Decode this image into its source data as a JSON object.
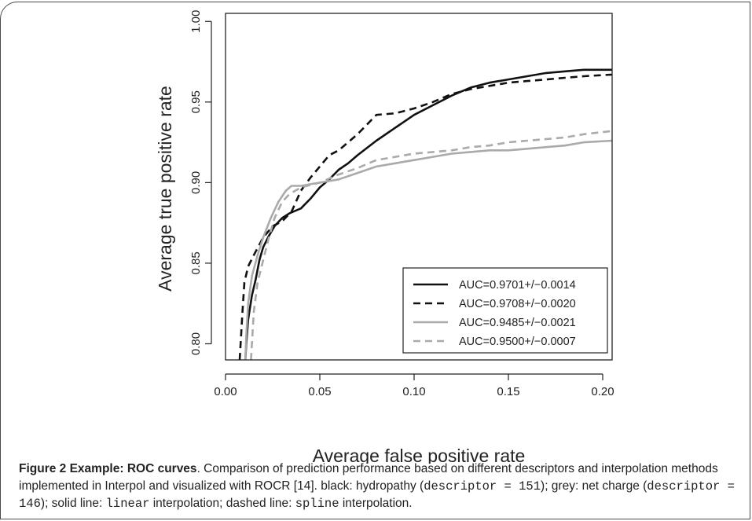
{
  "chart_data": {
    "type": "line",
    "xlabel": "Average false positive rate",
    "ylabel": "Average true positive rate",
    "xlim": [
      0.0,
      0.205
    ],
    "ylim": [
      0.79,
      1.005
    ],
    "x_ticks": [
      "0.00",
      "0.05",
      "0.10",
      "0.15",
      "0.20"
    ],
    "y_ticks": [
      "0.80",
      "0.85",
      "0.90",
      "0.95",
      "1.00"
    ],
    "grid": false,
    "legend_position": "bottom-right",
    "series": [
      {
        "name": "AUC=0.9701+/−0.0014",
        "color": "#111111",
        "dash": "solid",
        "points": [
          [
            0.0105,
            0.79
          ],
          [
            0.011,
            0.8
          ],
          [
            0.012,
            0.815
          ],
          [
            0.014,
            0.83
          ],
          [
            0.016,
            0.84
          ],
          [
            0.018,
            0.852
          ],
          [
            0.02,
            0.86
          ],
          [
            0.023,
            0.867
          ],
          [
            0.026,
            0.873
          ],
          [
            0.03,
            0.878
          ],
          [
            0.034,
            0.881
          ],
          [
            0.04,
            0.884
          ],
          [
            0.045,
            0.89
          ],
          [
            0.05,
            0.897
          ],
          [
            0.055,
            0.902
          ],
          [
            0.06,
            0.908
          ],
          [
            0.065,
            0.912
          ],
          [
            0.07,
            0.917
          ],
          [
            0.08,
            0.926
          ],
          [
            0.09,
            0.934
          ],
          [
            0.1,
            0.942
          ],
          [
            0.11,
            0.948
          ],
          [
            0.12,
            0.954
          ],
          [
            0.13,
            0.959
          ],
          [
            0.14,
            0.962
          ],
          [
            0.15,
            0.964
          ],
          [
            0.16,
            0.966
          ],
          [
            0.17,
            0.968
          ],
          [
            0.18,
            0.969
          ],
          [
            0.19,
            0.97
          ],
          [
            0.205,
            0.97
          ]
        ]
      },
      {
        "name": "AUC=0.9708+/−0.0020",
        "color": "#111111",
        "dash": "dashed",
        "points": [
          [
            0.0075,
            0.79
          ],
          [
            0.008,
            0.8
          ],
          [
            0.009,
            0.82
          ],
          [
            0.01,
            0.838
          ],
          [
            0.012,
            0.848
          ],
          [
            0.015,
            0.855
          ],
          [
            0.02,
            0.866
          ],
          [
            0.025,
            0.873
          ],
          [
            0.03,
            0.876
          ],
          [
            0.035,
            0.882
          ],
          [
            0.04,
            0.895
          ],
          [
            0.045,
            0.903
          ],
          [
            0.05,
            0.91
          ],
          [
            0.055,
            0.917
          ],
          [
            0.06,
            0.92
          ],
          [
            0.065,
            0.925
          ],
          [
            0.07,
            0.93
          ],
          [
            0.08,
            0.942
          ],
          [
            0.09,
            0.943
          ],
          [
            0.1,
            0.946
          ],
          [
            0.11,
            0.95
          ],
          [
            0.12,
            0.955
          ],
          [
            0.13,
            0.958
          ],
          [
            0.14,
            0.96
          ],
          [
            0.15,
            0.962
          ],
          [
            0.16,
            0.963
          ],
          [
            0.17,
            0.964
          ],
          [
            0.18,
            0.965
          ],
          [
            0.19,
            0.966
          ],
          [
            0.205,
            0.967
          ]
        ]
      },
      {
        "name": "AUC=0.9485+/−0.0021",
        "color": "#aaaaaa",
        "dash": "solid",
        "points": [
          [
            0.0105,
            0.79
          ],
          [
            0.011,
            0.805
          ],
          [
            0.012,
            0.825
          ],
          [
            0.014,
            0.842
          ],
          [
            0.017,
            0.855
          ],
          [
            0.02,
            0.866
          ],
          [
            0.024,
            0.878
          ],
          [
            0.028,
            0.888
          ],
          [
            0.032,
            0.895
          ],
          [
            0.035,
            0.898
          ],
          [
            0.04,
            0.898
          ],
          [
            0.045,
            0.899
          ],
          [
            0.05,
            0.9
          ],
          [
            0.06,
            0.902
          ],
          [
            0.07,
            0.906
          ],
          [
            0.08,
            0.91
          ],
          [
            0.09,
            0.912
          ],
          [
            0.1,
            0.914
          ],
          [
            0.11,
            0.916
          ],
          [
            0.12,
            0.918
          ],
          [
            0.13,
            0.919
          ],
          [
            0.14,
            0.92
          ],
          [
            0.15,
            0.92
          ],
          [
            0.16,
            0.921
          ],
          [
            0.17,
            0.922
          ],
          [
            0.18,
            0.923
          ],
          [
            0.19,
            0.925
          ],
          [
            0.205,
            0.926
          ]
        ]
      },
      {
        "name": "AUC=0.9500+/−0.0007",
        "color": "#aaaaaa",
        "dash": "dashed",
        "points": [
          [
            0.0135,
            0.79
          ],
          [
            0.014,
            0.8
          ],
          [
            0.015,
            0.82
          ],
          [
            0.017,
            0.838
          ],
          [
            0.02,
            0.852
          ],
          [
            0.023,
            0.866
          ],
          [
            0.026,
            0.878
          ],
          [
            0.03,
            0.888
          ],
          [
            0.034,
            0.893
          ],
          [
            0.04,
            0.897
          ],
          [
            0.05,
            0.9
          ],
          [
            0.06,
            0.905
          ],
          [
            0.07,
            0.909
          ],
          [
            0.08,
            0.914
          ],
          [
            0.09,
            0.916
          ],
          [
            0.1,
            0.918
          ],
          [
            0.11,
            0.919
          ],
          [
            0.12,
            0.92
          ],
          [
            0.13,
            0.922
          ],
          [
            0.14,
            0.923
          ],
          [
            0.15,
            0.925
          ],
          [
            0.16,
            0.926
          ],
          [
            0.17,
            0.927
          ],
          [
            0.18,
            0.928
          ],
          [
            0.19,
            0.93
          ],
          [
            0.205,
            0.932
          ]
        ]
      }
    ]
  },
  "caption": {
    "lead": "Figure 2 Example: ROC curves",
    "t1": ". Comparison of prediction performance based on different descriptors and interpolation methods implemented in Interpol and visualized with ROCR [14]. black: hydropathy (",
    "c1": "descriptor = 151",
    "t2": "); grey: net charge (",
    "c2": "descriptor = 146",
    "t3": "); solid line: ",
    "c3": "linear",
    "t4": " interpolation; dashed line: ",
    "c4": "spline",
    "t5": " interpolation."
  }
}
